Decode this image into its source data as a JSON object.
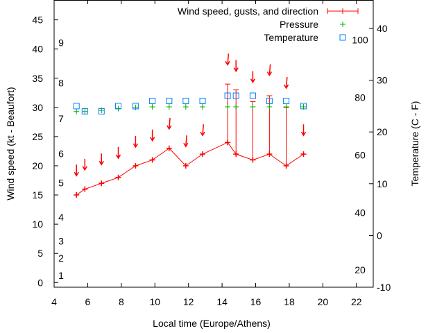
{
  "chart_data": {
    "type": "line",
    "xlabel": "Local time (Europe/Athens)",
    "ylabel": "Wind speed (kt - Beaufort)",
    "y2label": "Temperature (C - F)",
    "xlim": [
      4,
      23
    ],
    "ylim": [
      -0.8,
      48.4
    ],
    "y2lim": [
      -10,
      45.5
    ],
    "xticks": [
      4,
      6,
      8,
      10,
      12,
      14,
      16,
      18,
      20,
      22
    ],
    "yticks": [
      0,
      5,
      10,
      15,
      20,
      25,
      30,
      35,
      40,
      45
    ],
    "y2ticks": [
      -10,
      0,
      10,
      20,
      30,
      40
    ],
    "beaufort_ticks": [
      {
        "label": "1",
        "kt": 1.2
      },
      {
        "label": "2",
        "kt": 4.2
      },
      {
        "label": "3",
        "kt": 7.1
      },
      {
        "label": "4",
        "kt": 11.2
      },
      {
        "label": "5",
        "kt": 17.1
      },
      {
        "label": "6",
        "kt": 22.1
      },
      {
        "label": "7",
        "kt": 28.1
      },
      {
        "label": "8",
        "kt": 34.2
      },
      {
        "label": "9",
        "kt": 41.1
      }
    ],
    "fahrenheit_ticks": [
      20,
      40,
      60,
      80,
      100
    ],
    "legend_position": "top-right",
    "legend": [
      "Wind speed, gusts, and direction",
      "Pressure",
      "Temperature"
    ],
    "colors": {
      "wind": "#ff0000",
      "pressure": "#00b000",
      "temperature": "#0080ff"
    },
    "x": [
      5.33,
      5.83,
      6.82,
      7.82,
      8.85,
      9.85,
      10.85,
      11.84,
      12.84,
      14.33,
      14.83,
      15.83,
      16.82,
      17.82,
      18.85
    ],
    "wind_speed": [
      15,
      16,
      17,
      18,
      20,
      21,
      23,
      20,
      22,
      24,
      22,
      21,
      22,
      20,
      22
    ],
    "gusts": [
      null,
      null,
      null,
      null,
      null,
      null,
      null,
      null,
      null,
      34,
      33,
      31,
      32,
      30,
      null
    ],
    "wind_direction_deg": [
      0,
      0,
      0,
      0,
      0,
      0,
      345,
      345,
      345,
      345,
      0,
      0,
      345,
      345,
      0
    ],
    "arrow_tip_kt": [
      18.3,
      19.3,
      20.2,
      21.3,
      23.2,
      24.3,
      26.3,
      23.3,
      25.2,
      37.3,
      36.2,
      34.3,
      35.5,
      33.3,
      25.2
    ],
    "pressure_scaled": [
      29.3,
      29.3,
      29.5,
      29.8,
      30,
      30.1,
      30.1,
      30.1,
      30.1,
      30.1,
      30.1,
      30.1,
      30.1,
      30.1,
      30.1
    ],
    "temperature_c": [
      25,
      24,
      24,
      25,
      25,
      26,
      26,
      26,
      26,
      27,
      27,
      27,
      26,
      26,
      25
    ]
  }
}
